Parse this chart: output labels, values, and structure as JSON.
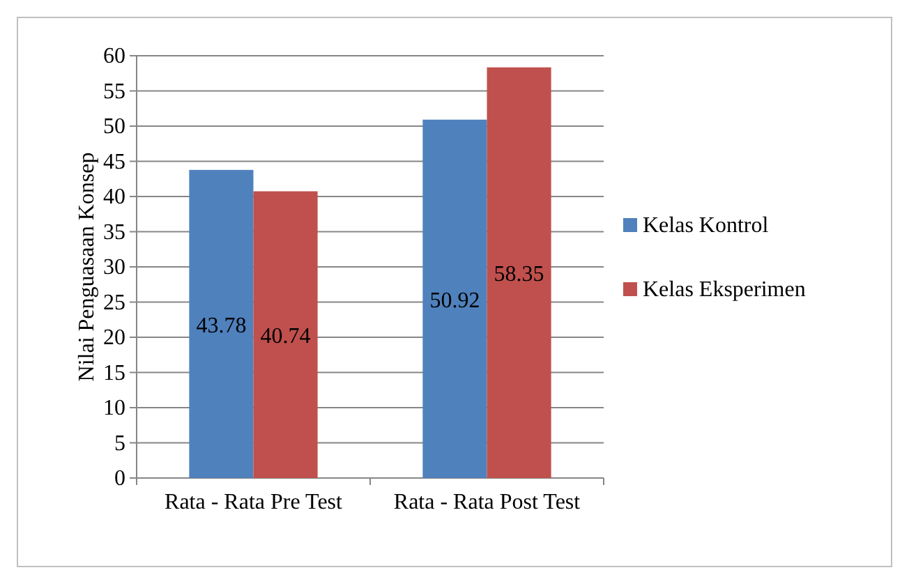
{
  "chart_data": {
    "type": "bar",
    "ylabel": "Nilai Penguasaan Konsep",
    "categories": [
      "Rata - Rata Pre Test",
      "Rata - Rata Post Test"
    ],
    "series": [
      {
        "name": "Kelas Kontrol",
        "color": "#4f81bd",
        "values": [
          43.78,
          50.92
        ]
      },
      {
        "name": "Kelas Eksperimen",
        "color": "#c0504d",
        "values": [
          40.74,
          58.35
        ]
      }
    ],
    "ylim": [
      0,
      60
    ],
    "yticks": [
      0,
      5,
      10,
      15,
      20,
      25,
      30,
      35,
      40,
      45,
      50,
      55,
      60
    ],
    "grid": "y",
    "legend": "right",
    "data_labels": true
  }
}
